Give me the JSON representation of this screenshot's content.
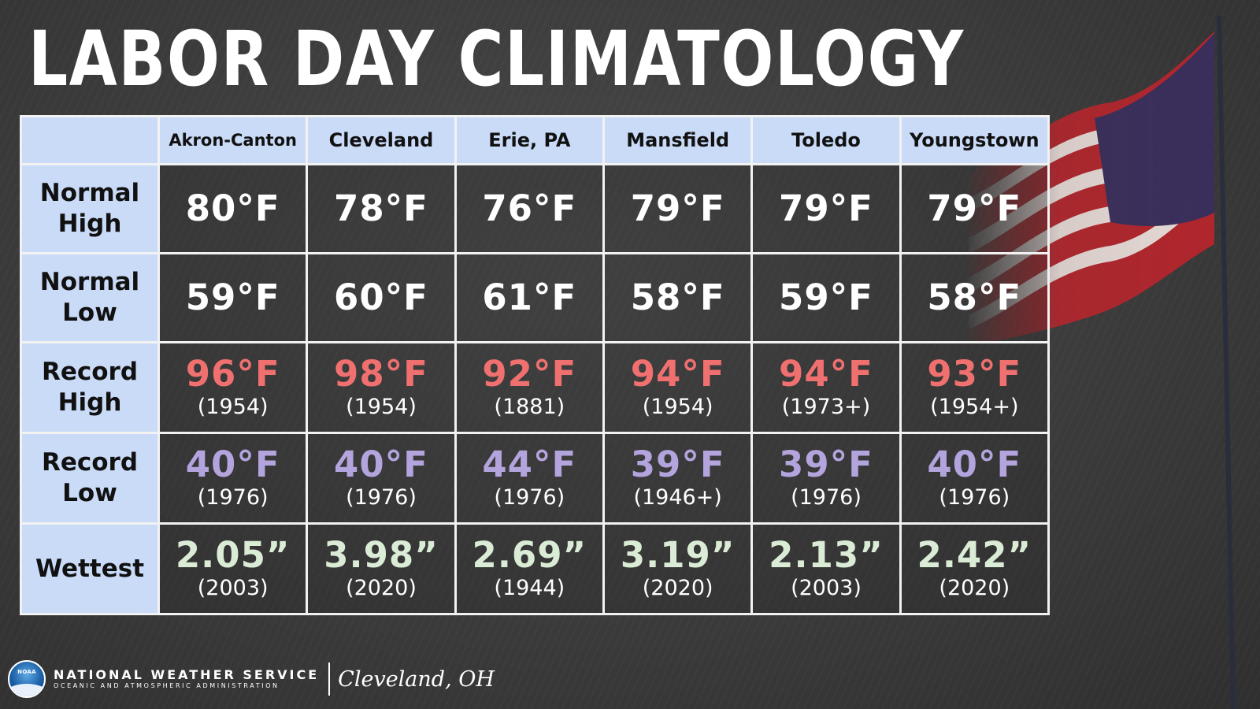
{
  "title": "LABOR DAY CLIMATOLOGY",
  "columns": [
    "Akron-Canton",
    "Cleveland",
    "Erie, PA",
    "Mansfield",
    "Toledo",
    "Youngstown"
  ],
  "rows": [
    {
      "label": "Normal High",
      "values": [
        "80°F",
        "78°F",
        "76°F",
        "79°F",
        "79°F",
        "79°F"
      ],
      "years": [],
      "color": "#ffffff"
    },
    {
      "label": "Normal Low",
      "values": [
        "59°F",
        "60°F",
        "61°F",
        "58°F",
        "59°F",
        "58°F"
      ],
      "years": [],
      "color": "#ffffff"
    },
    {
      "label": "Record High",
      "values": [
        "96°F",
        "98°F",
        "92°F",
        "94°F",
        "94°F",
        "93°F"
      ],
      "years": [
        "(1954)",
        "(1954)",
        "(1881)",
        "(1954)",
        "(1973+)",
        "(1954+)"
      ],
      "color": "#f07070"
    },
    {
      "label": "Record Low",
      "values": [
        "40°F",
        "40°F",
        "44°F",
        "39°F",
        "39°F",
        "40°F"
      ],
      "years": [
        "(1976)",
        "(1976)",
        "(1976)",
        "(1946+)",
        "(1976)",
        "(1976)"
      ],
      "color": "#b3a4dd"
    },
    {
      "label": "Wettest",
      "values": [
        "2.05”",
        "3.98”",
        "2.69”",
        "3.19”",
        "2.13”",
        "2.42”"
      ],
      "years": [
        "(2003)",
        "(2020)",
        "(1944)",
        "(2020)",
        "(2003)",
        "(2020)"
      ],
      "color": "#dbecd6"
    }
  ],
  "footer": {
    "logo_text": "NOAA",
    "agency": "NATIONAL WEATHER SERVICE",
    "agency_sub": "OCEANIC AND ATMOSPHERIC ADMINISTRATION",
    "office": "Cleveland, OH"
  },
  "colors": {
    "header_bg": "#c9dbf7",
    "record_high": "#f07070",
    "record_low": "#b3a4dd",
    "wettest": "#dbecd6"
  },
  "icons": {
    "flag": "american-flag-icon",
    "logo": "noaa-logo-icon"
  }
}
